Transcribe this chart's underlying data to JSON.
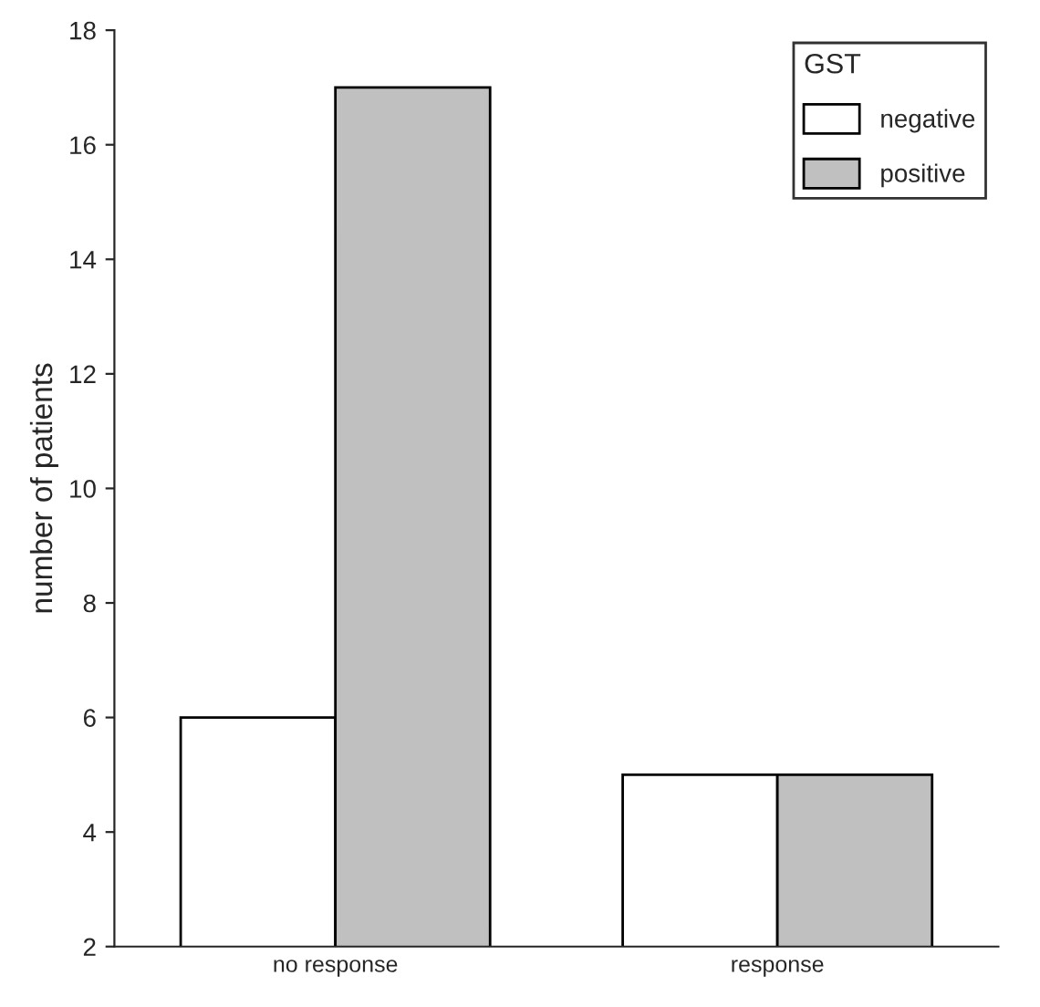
{
  "chart_data": {
    "type": "bar",
    "ylabel": "number of patients",
    "legend_title": "GST",
    "categories": [
      "no response",
      "response"
    ],
    "series": [
      {
        "name": "negative",
        "color": "#ffffff",
        "values": [
          6,
          5
        ]
      },
      {
        "name": "positive",
        "color": "#c0c0c0",
        "values": [
          17,
          5
        ]
      }
    ],
    "ylim": [
      2,
      18
    ],
    "yticks": [
      2,
      4,
      6,
      8,
      10,
      12,
      14,
      16,
      18
    ],
    "grid": false,
    "legend": "top right"
  }
}
